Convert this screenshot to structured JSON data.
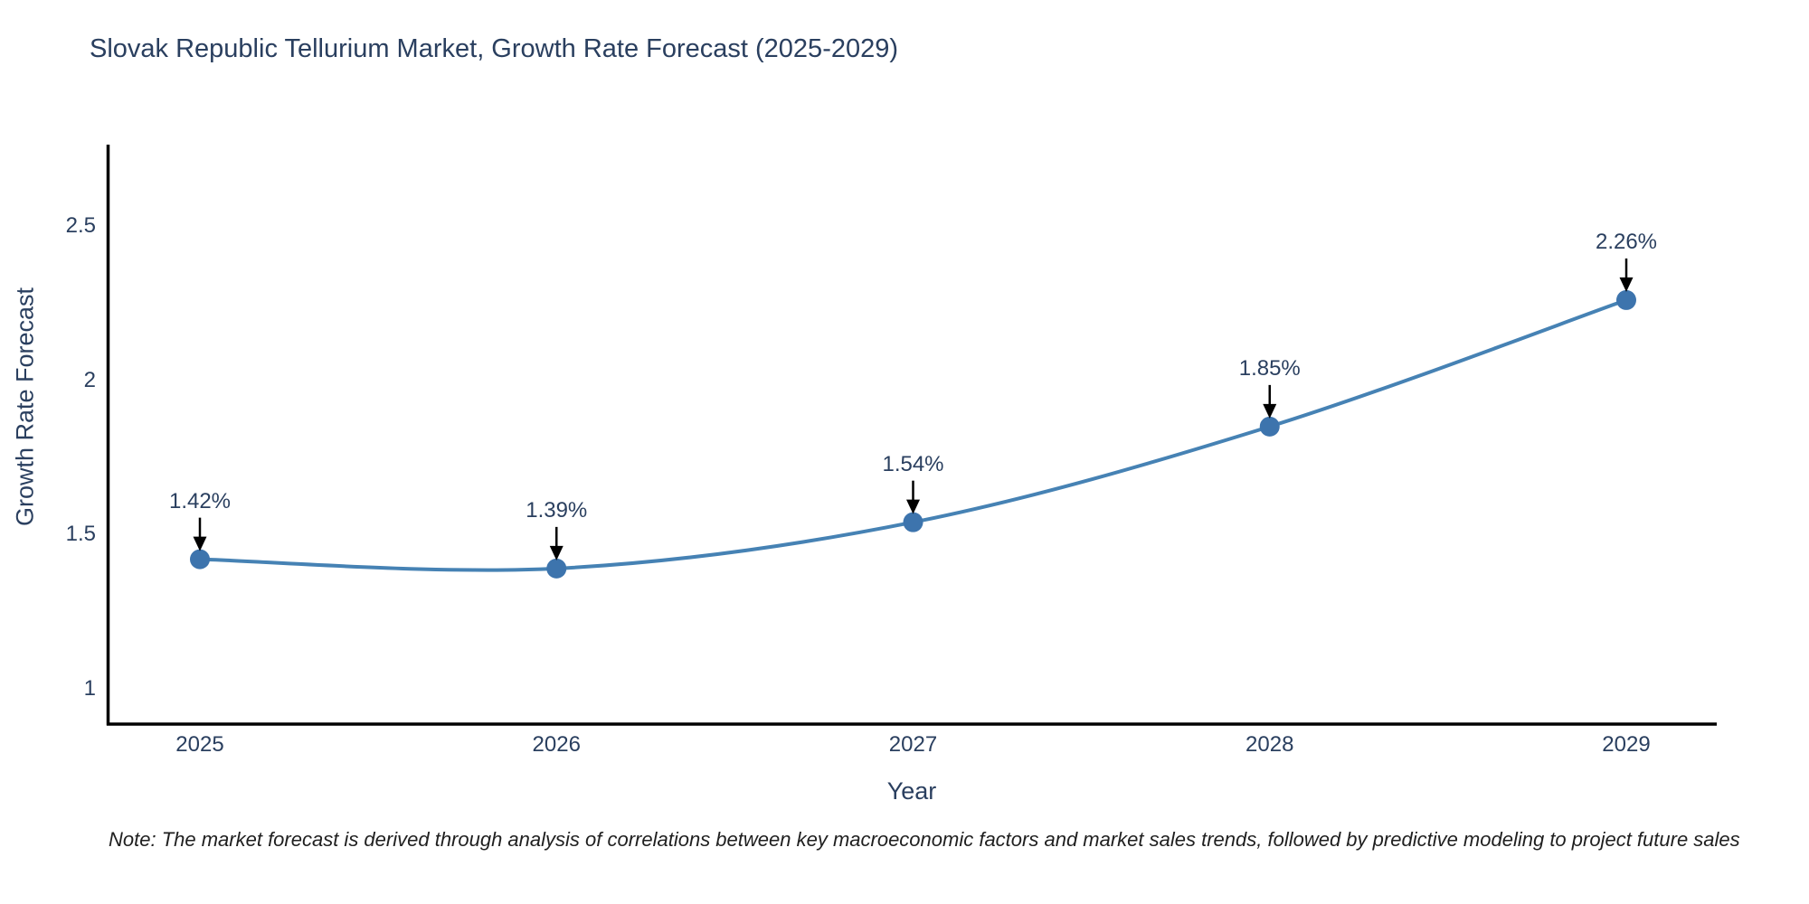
{
  "page": {
    "note": "Note: The market forecast is derived through analysis of correlations between key macroeconomic factors and market sales trends, followed by predictive modeling to project future sales"
  },
  "chart_data": {
    "type": "line",
    "title": "Slovak Republic Tellurium Market, Growth Rate Forecast (2025-2029)",
    "xlabel": "Year",
    "ylabel": "Growth Rate Forecast",
    "x": [
      2025,
      2026,
      2027,
      2028,
      2029
    ],
    "series": [
      {
        "name": "Growth Rate Forecast",
        "values": [
          1.42,
          1.39,
          1.54,
          1.85,
          2.26
        ],
        "point_labels": [
          "1.42%",
          "1.39%",
          "1.54%",
          "1.85%",
          "2.26%"
        ]
      }
    ],
    "x_tick_labels": [
      "2025",
      "2026",
      "2027",
      "2028",
      "2029"
    ],
    "y_tick_values": [
      1,
      1.5,
      2,
      2.5
    ],
    "y_tick_labels": [
      "1",
      "1.5",
      "2",
      "2.5"
    ],
    "ylim": [
      0.89,
      2.76
    ],
    "xlim": [
      2024.74,
      2029.25
    ],
    "grid": false,
    "legend_visible": false,
    "line_shape": "spline",
    "colors": {
      "line": "#4682b4",
      "marker": "#3d74ad",
      "axis": "#000000",
      "text": "#2a3f5f",
      "annotation_arrow": "#000000"
    }
  }
}
